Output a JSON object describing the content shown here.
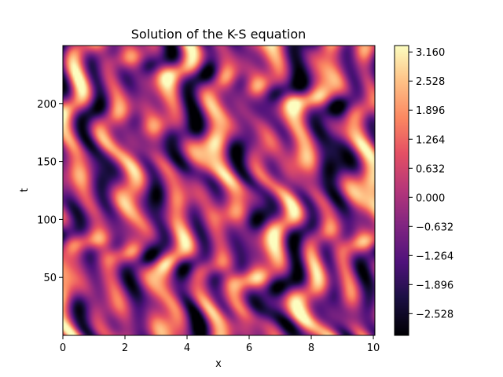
{
  "chart_data": {
    "type": "heatmap",
    "title": "Solution of the K-S equation",
    "xlabel": "x",
    "ylabel": "t",
    "xlim": [
      0,
      10.05
    ],
    "ylim": [
      0,
      250
    ],
    "x_ticks": [
      0,
      2,
      4,
      6,
      8,
      10
    ],
    "x_tick_labels": [
      "0",
      "2",
      "4",
      "6",
      "8",
      "10"
    ],
    "y_ticks": [
      50,
      100,
      150,
      200
    ],
    "y_tick_labels": [
      "50",
      "100",
      "150",
      "200"
    ],
    "colormap": "magma",
    "colorbar": {
      "vmin": -3.0,
      "vmax": 3.3,
      "ticks": [
        -2.528,
        -1.896,
        -1.264,
        -0.632,
        0.0,
        0.632,
        1.264,
        1.896,
        2.528,
        3.16
      ],
      "tick_labels": [
        "−2.528",
        "−1.896",
        "−1.264",
        "−0.632",
        "0.000",
        "0.632",
        "1.264",
        "1.896",
        "2.528",
        "3.160"
      ]
    },
    "grid": false
  }
}
